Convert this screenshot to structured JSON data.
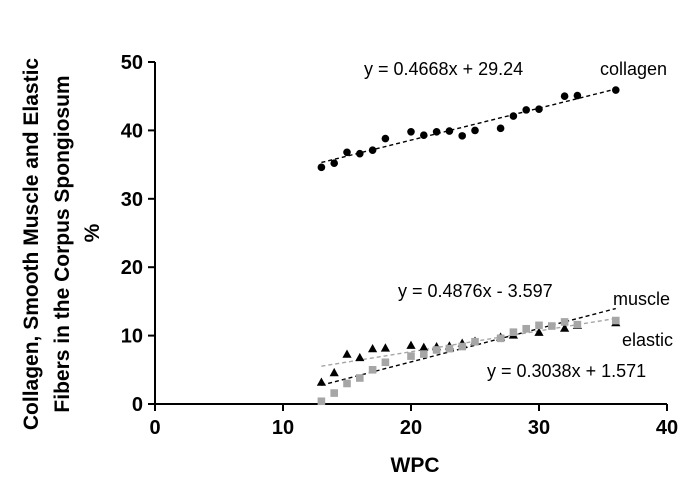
{
  "chart_data": {
    "type": "scatter",
    "xlabel": "WPC",
    "ylabel_line1": "Collagen, Smooth Muscle and Elastic",
    "ylabel_line2": "Fibers in the Corpus Spongiosum",
    "ylabel_line3": "%",
    "xlim": [
      0,
      40
    ],
    "ylim": [
      0,
      50
    ],
    "x_ticks": [
      0,
      10,
      20,
      30,
      40
    ],
    "y_ticks": [
      0,
      10,
      20,
      30,
      40,
      50
    ],
    "grid": false,
    "series": [
      {
        "name": "collagen",
        "marker": "circle",
        "color": "#000000",
        "equation": "y =  0.4668x + 29.24",
        "fit": {
          "slope": 0.4668,
          "intercept": 29.24,
          "x_range": [
            13,
            36
          ]
        },
        "points": [
          [
            13,
            34.6
          ],
          [
            14,
            35.2
          ],
          [
            15,
            36.8
          ],
          [
            16,
            36.6
          ],
          [
            17,
            37.1
          ],
          [
            18,
            38.8
          ],
          [
            20,
            39.8
          ],
          [
            21,
            39.3
          ],
          [
            22,
            39.8
          ],
          [
            23,
            39.9
          ],
          [
            24,
            39.2
          ],
          [
            25,
            40.0
          ],
          [
            27,
            40.3
          ],
          [
            28,
            42.1
          ],
          [
            29,
            43.0
          ],
          [
            30,
            43.1
          ],
          [
            32,
            45.0
          ],
          [
            33,
            45.1
          ],
          [
            36,
            45.9
          ]
        ]
      },
      {
        "name": "muscle",
        "marker": "triangle",
        "color": "#000000",
        "equation": "y = 0.4876x - 3.597",
        "fit": {
          "slope": 0.4876,
          "intercept": -3.597,
          "x_range": [
            13,
            36
          ]
        },
        "points": [
          [
            13,
            3.2
          ],
          [
            14,
            4.6
          ],
          [
            15,
            7.3
          ],
          [
            16,
            6.8
          ],
          [
            17,
            8.1
          ],
          [
            18,
            8.2
          ],
          [
            20,
            8.6
          ],
          [
            21,
            8.3
          ],
          [
            22,
            8.4
          ],
          [
            23,
            8.5
          ],
          [
            24,
            8.9
          ],
          [
            25,
            9.2
          ],
          [
            27,
            9.8
          ],
          [
            28,
            10.1
          ],
          [
            30,
            10.5
          ],
          [
            32,
            11.1
          ],
          [
            33,
            11.5
          ],
          [
            36,
            11.9
          ]
        ]
      },
      {
        "name": "elastic",
        "marker": "square",
        "color": "#a6a6a6",
        "equation": "y = 0.3038x + 1.571",
        "fit": {
          "slope": 0.3038,
          "intercept": 1.571,
          "x_range": [
            13,
            36
          ]
        },
        "points": [
          [
            13,
            0.4
          ],
          [
            14,
            1.6
          ],
          [
            15,
            3.0
          ],
          [
            16,
            3.8
          ],
          [
            17,
            5.0
          ],
          [
            18,
            6.1
          ],
          [
            20,
            7.0
          ],
          [
            21,
            7.3
          ],
          [
            22,
            7.9
          ],
          [
            23,
            8.1
          ],
          [
            24,
            8.4
          ],
          [
            25,
            9.1
          ],
          [
            27,
            9.6
          ],
          [
            28,
            10.5
          ],
          [
            29,
            11.0
          ],
          [
            30,
            11.5
          ],
          [
            31,
            11.4
          ],
          [
            32,
            12.0
          ],
          [
            33,
            11.6
          ],
          [
            36,
            12.2
          ]
        ]
      }
    ]
  }
}
